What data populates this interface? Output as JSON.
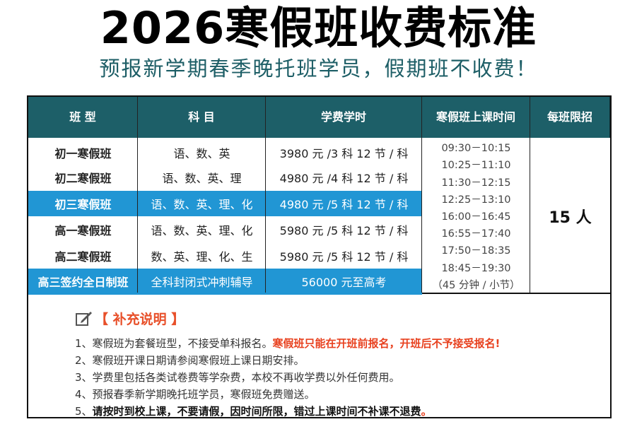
{
  "title": "2026寒假班收费标准",
  "subtitle": "预报新学期春季晚托班学员，假期班不收费！",
  "colors": {
    "header_bg": "#1d5f68",
    "highlight_bg": "#2196d4",
    "accent_red": "#e8411f",
    "subtitle": "#1d5e66"
  },
  "table": {
    "headers": [
      "班 型",
      "科 目",
      "学费学时",
      "寒假班\n上课时间",
      "每班限招"
    ],
    "header_time_lines": [
      "寒假班",
      "上课时间"
    ],
    "rows": [
      {
        "class": "初一寒假班",
        "subjects": "语、数、英",
        "fee": "3980 元 /3 科  12 节 / 科",
        "highlight": false
      },
      {
        "class": "初二寒假班",
        "subjects": "语、数、英、理",
        "fee": "4980 元 /4 科  12 节 / 科",
        "highlight": false
      },
      {
        "class": "初三寒假班",
        "subjects": "语、数、英、理、化",
        "fee": "4980 元 /5 科  12 节 / 科",
        "highlight": true
      },
      {
        "class": "高一寒假班",
        "subjects": "语、数、英、理、化",
        "fee": "5980 元 /5 科  12 节 / 科",
        "highlight": false
      },
      {
        "class": "高二寒假班",
        "subjects": "数、英、理、化、生",
        "fee": "5980 元 /5 科  12 节 / 科",
        "highlight": false
      },
      {
        "class": "高三签约全日制班",
        "subjects": "全科封闭式冲刺辅导",
        "fee": "56000 元至高考",
        "highlight": true
      }
    ],
    "times": [
      "09:30－10:15",
      "10:25－11:10",
      "11:30－12:15",
      "12:25－13:10",
      "16:00－16:45",
      "16:55－17:40",
      "17:50－18:35",
      "18:45－19:30",
      "（45 分钟 / 小节）"
    ],
    "limit": "15 人"
  },
  "notes": {
    "icon": "edit-note-icon",
    "title": "【 补充说明 】",
    "items": [
      {
        "normal": "1、寒假班为套餐班型，不接受单科报名。",
        "red": "寒假班只能在开班前报名，开班后不予接受报名!"
      },
      {
        "normal": "2、寒假班开课日期请参阅寒假班上课日期安排。"
      },
      {
        "normal": "3、学费里包括各类试卷费等学杂费，本校不再收学费以外任何费用。"
      },
      {
        "normal": "4、预报春季新学期晚托班学员，寒假班免费赠送。"
      },
      {
        "normal": "5、",
        "bold": "请按时到校上课，不要请假，因时间所限，错过上课时间不补课不退费",
        "red": "。"
      }
    ]
  }
}
